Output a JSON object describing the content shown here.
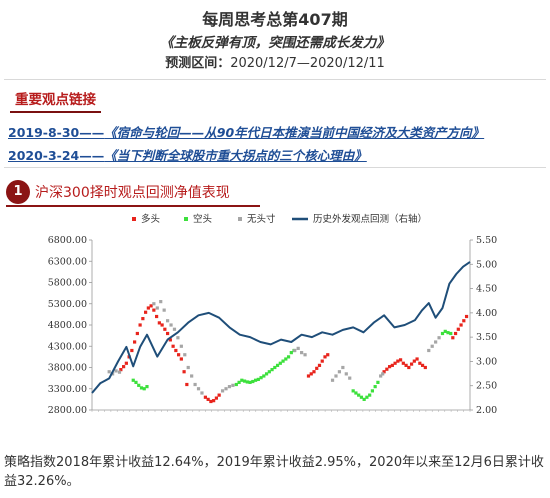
{
  "header": {
    "title": "每周思考总第407期",
    "subtitle": "《主板反弹有顶，突围还需成长发力》",
    "period_label": "预测区间：",
    "period_value": "2020/12/7—2020/12/11"
  },
  "links_section": {
    "label": "重要观点链接",
    "items": [
      {
        "date": "2019-8-30——",
        "title": "《宿命与轮回——从90年代日本推演当前中国经济及大类资产方向》"
      },
      {
        "date": "2020-3-24——",
        "title": "《当下判断全球股市重大拐点的三个核心理由》"
      }
    ]
  },
  "chart_section": {
    "number": "1",
    "label": "沪深300择时观点回测净值表现"
  },
  "colors": {
    "bull": "#e8241c",
    "bear": "#3ce03c",
    "neutral": "#a6a6a6",
    "nav_line": "#1f4e79",
    "accent": "#8b1414",
    "link": "#1f4e96"
  },
  "chart_data": {
    "type": "line",
    "title": "",
    "xlabel": "",
    "ylabel": "",
    "ylim": [
      2800,
      6800
    ],
    "y_ticks": [
      "6800.00",
      "6300.00",
      "5800.00",
      "5300.00",
      "4800.00",
      "4300.00",
      "3800.00",
      "3300.00",
      "2800.00"
    ],
    "y2lim": [
      2.0,
      5.5
    ],
    "y2_ticks": [
      "5.50",
      "5.00",
      "4.50",
      "4.00",
      "3.50",
      "3.00",
      "2.50",
      "2.00"
    ],
    "grid": false,
    "legend_position": "top",
    "x_period": [
      "2015-06",
      "2020-12"
    ],
    "series": [
      {
        "name": "多头",
        "kind": "points",
        "color_key": "bull",
        "axis": "left",
        "x": [
          2015.92,
          2015.96,
          2016.0,
          2016.04,
          2016.08,
          2016.12,
          2016.16,
          2016.2,
          2016.24,
          2016.28,
          2016.32,
          2016.36,
          2016.4,
          2016.44,
          2016.48,
          2016.52,
          2016.56,
          2016.6,
          2016.64,
          2016.68,
          2016.72,
          2016.76,
          2016.8,
          2016.84,
          2016.88,
          2017.15,
          2017.19,
          2017.23,
          2017.27,
          2017.31,
          2017.35,
          2018.65,
          2018.69,
          2018.73,
          2018.77,
          2018.81,
          2018.85,
          2018.89,
          2018.93,
          2019.75,
          2019.79,
          2019.83,
          2019.87,
          2019.91,
          2019.95,
          2019.99,
          2020.03,
          2020.07,
          2020.11,
          2020.15,
          2020.19,
          2020.23,
          2020.27,
          2020.31,
          2020.35,
          2020.75,
          2020.79,
          2020.83,
          2020.87,
          2020.91,
          2020.95
        ],
        "y": [
          3750,
          3820,
          3900,
          4050,
          4200,
          4400,
          4600,
          4800,
          4950,
          5100,
          5200,
          5250,
          5150,
          5000,
          4850,
          4800,
          4700,
          4600,
          4450,
          4300,
          4200,
          4100,
          4000,
          3700,
          3400,
          3100,
          3050,
          3000,
          3020,
          3080,
          3150,
          3600,
          3650,
          3700,
          3780,
          3850,
          3950,
          4050,
          4100,
          3700,
          3760,
          3820,
          3850,
          3900,
          3950,
          3980,
          3900,
          3850,
          3800,
          3880,
          3950,
          4000,
          3900,
          3850,
          3800,
          4500,
          4600,
          4700,
          4800,
          4900,
          5000
        ]
      },
      {
        "name": "空头",
        "kind": "points",
        "color_key": "bear",
        "axis": "left",
        "x": [
          2016.1,
          2016.14,
          2016.18,
          2016.22,
          2016.26,
          2016.3,
          2017.6,
          2017.64,
          2017.68,
          2017.72,
          2017.76,
          2017.8,
          2017.84,
          2017.88,
          2017.92,
          2017.96,
          2018.0,
          2018.04,
          2018.08,
          2018.12,
          2018.16,
          2018.2,
          2018.24,
          2018.28,
          2018.32,
          2018.36,
          2018.4,
          2018.44,
          2019.3,
          2019.34,
          2019.38,
          2019.42,
          2019.46,
          2019.5,
          2019.54,
          2019.58,
          2019.62,
          2019.66,
          2020.6,
          2020.64,
          2020.68,
          2020.72
        ],
        "y": [
          3500,
          3450,
          3380,
          3320,
          3300,
          3350,
          3400,
          3450,
          3500,
          3480,
          3460,
          3450,
          3470,
          3500,
          3520,
          3560,
          3600,
          3650,
          3700,
          3750,
          3800,
          3850,
          3900,
          3950,
          4000,
          4050,
          4150,
          4200,
          3250,
          3200,
          3150,
          3100,
          3050,
          3100,
          3150,
          3250,
          3350,
          3450,
          4600,
          4650,
          4620,
          4600
        ]
      },
      {
        "name": "无头寸",
        "kind": "points",
        "color_key": "neutral",
        "axis": "left",
        "x": [
          2015.75,
          2015.8,
          2015.85,
          2015.9,
          2016.4,
          2016.45,
          2016.5,
          2016.55,
          2016.6,
          2016.65,
          2016.7,
          2016.75,
          2016.8,
          2016.85,
          2016.9,
          2016.95,
          2017.0,
          2017.05,
          2017.1,
          2017.4,
          2017.45,
          2017.5,
          2017.55,
          2018.45,
          2018.5,
          2018.55,
          2018.6,
          2019.0,
          2019.05,
          2019.1,
          2019.15,
          2019.2,
          2019.25,
          2019.7,
          2019.73,
          2020.4,
          2020.45,
          2020.5,
          2020.55
        ],
        "y": [
          3700,
          3650,
          3720,
          3690,
          5300,
          5200,
          5350,
          5150,
          4900,
          4800,
          4700,
          4500,
          4300,
          4100,
          3800,
          3600,
          3400,
          3300,
          3200,
          3250,
          3300,
          3350,
          3380,
          4200,
          4250,
          4150,
          4100,
          3500,
          3600,
          3700,
          3800,
          3650,
          3550,
          3600,
          3650,
          4200,
          4300,
          4400,
          4500
        ]
      },
      {
        "name": "历史外发观点回测（右轴）",
        "kind": "line",
        "color_key": "nav_line",
        "axis": "right",
        "x": [
          2015.5,
          2015.62,
          2015.75,
          2015.88,
          2016.0,
          2016.1,
          2016.2,
          2016.3,
          2016.45,
          2016.6,
          2016.75,
          2016.9,
          2017.05,
          2017.2,
          2017.35,
          2017.5,
          2017.65,
          2017.8,
          2017.95,
          2018.1,
          2018.25,
          2018.4,
          2018.55,
          2018.7,
          2018.85,
          2019.0,
          2019.15,
          2019.3,
          2019.45,
          2019.6,
          2019.75,
          2019.9,
          2020.05,
          2020.2,
          2020.3,
          2020.4,
          2020.5,
          2020.6,
          2020.7,
          2020.8,
          2020.9,
          2021.0
        ],
        "y": [
          2.35,
          2.55,
          2.65,
          3.0,
          3.3,
          2.9,
          3.3,
          3.55,
          3.1,
          3.45,
          3.6,
          3.8,
          3.95,
          4.0,
          3.9,
          3.7,
          3.55,
          3.5,
          3.4,
          3.35,
          3.45,
          3.4,
          3.55,
          3.5,
          3.6,
          3.55,
          3.65,
          3.7,
          3.6,
          3.8,
          3.95,
          3.7,
          3.75,
          3.85,
          4.05,
          4.2,
          3.9,
          4.1,
          4.6,
          4.8,
          4.95,
          5.05
        ]
      }
    ]
  },
  "footer": {
    "text": "策略指数2018年累计收益12.64%，2019年累计收益2.95%，2020年以来至12月6日累计收益32.26%。"
  }
}
